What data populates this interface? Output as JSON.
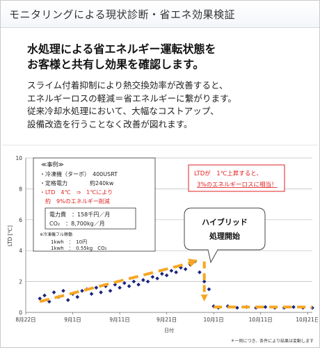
{
  "header": {
    "title": "モニタリングによる現状診断・省エネ効果検証"
  },
  "lead": {
    "line1": "水処理による省エネルギー運転状態を",
    "line2": "お客様と共有し効果を確認します。"
  },
  "body": {
    "line1": "スライム付着抑制により熱交換効率が改善すると、",
    "line2": "エネルギーロスの軽減＝省エネルギーに繋がります。",
    "line3": "従来冷却水処理において、大幅なコストアップ、",
    "line4": "設備改造を行うことなく改善が図れます。"
  },
  "chart_data": {
    "type": "scatter",
    "ylabel": "LTD [℃]",
    "xlabel": "日付",
    "ylim": [
      0,
      10
    ],
    "yticks": [
      0,
      2,
      4,
      6,
      8,
      10
    ],
    "xticks": [
      "8月22日",
      "9月1日",
      "9月11日",
      "9月21日",
      "10月1日",
      "10月11日",
      "10月21日"
    ],
    "series": [
      {
        "points": [
          [
            "8/25",
            0.9
          ],
          [
            "8/26",
            1.1
          ],
          [
            "8/27",
            0.7
          ],
          [
            "8/28",
            1.3
          ],
          [
            "8/29",
            1.0
          ],
          [
            "8/30",
            1.4
          ],
          [
            "8/31",
            0.8
          ],
          [
            "9/1",
            1.2
          ],
          [
            "9/2",
            1.0
          ],
          [
            "9/3",
            1.4
          ],
          [
            "9/4",
            1.5
          ],
          [
            "9/5",
            1.2
          ],
          [
            "9/6",
            1.6
          ],
          [
            "9/7",
            1.3
          ],
          [
            "9/8",
            1.7
          ],
          [
            "9/9",
            1.4
          ],
          [
            "9/10",
            1.8
          ],
          [
            "9/11",
            1.6
          ],
          [
            "9/12",
            1.9
          ],
          [
            "9/13",
            1.7
          ],
          [
            "9/14",
            2.0
          ],
          [
            "9/15",
            1.8
          ],
          [
            "9/16",
            2.1
          ],
          [
            "9/17",
            2.0
          ],
          [
            "9/18",
            2.3
          ],
          [
            "9/19",
            2.2
          ],
          [
            "9/20",
            2.5
          ],
          [
            "9/21",
            2.4
          ],
          [
            "9/22",
            2.7
          ],
          [
            "9/23",
            2.6
          ],
          [
            "9/24",
            2.9
          ],
          [
            "9/25",
            2.8
          ],
          [
            "9/26",
            3.1
          ],
          [
            "9/27",
            3.3
          ],
          [
            "9/28",
            2.6
          ],
          [
            "9/29",
            2.0
          ],
          [
            "9/30",
            1.5
          ],
          [
            "10/1",
            0.4
          ],
          [
            "10/2",
            0.3
          ],
          [
            "10/4",
            0.4
          ],
          [
            "10/6",
            0.3
          ],
          [
            "10/8",
            0.35
          ],
          [
            "10/10",
            0.3
          ],
          [
            "10/12",
            0.35
          ],
          [
            "10/14",
            0.3
          ],
          [
            "10/16",
            0.3
          ],
          [
            "10/18",
            0.35
          ],
          [
            "10/20",
            0.3
          ],
          [
            "10/22",
            0.3
          ]
        ]
      }
    ],
    "annotations": {
      "case_title": "≪事例≫",
      "case_items": [
        "・冷凍機（ターボ）　400USRT",
        "・定格電力　　　　約240kw",
        "・LTD　4℃　⇒　1℃により",
        "　約　9%のエネルギー削減"
      ],
      "cost_lines": [
        "電力費　：158千円／月",
        "CO₂　：8,700kg／月"
      ],
      "conv_title": "※冷凍機フル稼働",
      "conv_lines": [
        "1kwh　：　10円",
        "1kwh　：　0.55kg　CO₂"
      ],
      "ltd_note_line1": "LTDが　1℃上昇すると、",
      "ltd_note_line2": "3%のエネルギーロスに相当！",
      "hybrid_line1": "ハイブリッド",
      "hybrid_line2": "処理開始",
      "footnote": "＊一例につき、条件により結果は変動します"
    },
    "colors": {
      "points": "#1a237e",
      "trend": "#f5a623",
      "highlight_red": "#e02020",
      "note_border": "#e02020"
    }
  }
}
